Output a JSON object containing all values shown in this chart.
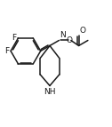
{
  "bg_color": "#ffffff",
  "line_color": "#1a1a1a",
  "lw": 1.1,
  "fs": 6.5,
  "xlim": [
    0.0,
    1.15
  ],
  "ylim": [
    0.05,
    1.05
  ]
}
